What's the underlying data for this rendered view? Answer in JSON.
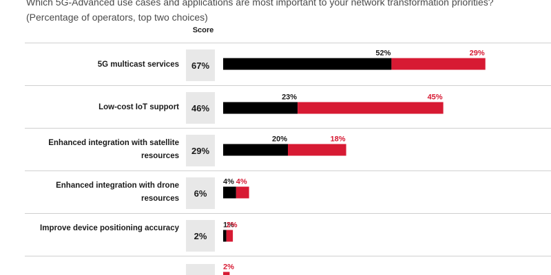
{
  "subtitle": "Which 5G-Advanced use cases and applications are most important to your network transformation priorities? (Percentage of operators, top two choices)",
  "score_header": "Score",
  "colors": {
    "first_choice": "#000000",
    "second_choice": "#d71a33",
    "score_box": "#e8e8e8"
  },
  "chart_data": {
    "type": "bar",
    "orientation": "horizontal",
    "stacked": true,
    "categories": [
      "5G multicast services",
      "Low-cost IoT support",
      "Enhanced integration with satellite resources",
      "Enhanced integration with drone resources",
      "Improve device positioning accuracy",
      ""
    ],
    "scores": [
      "67%",
      "46%",
      "29%",
      "6%",
      "2%",
      ""
    ],
    "series": [
      {
        "values": [
          52,
          23,
          20,
          4,
          1,
          null
        ],
        "labels": [
          "52%",
          "23%",
          "20%",
          "4%",
          "1%",
          ""
        ],
        "color": "#000000"
      },
      {
        "values": [
          29,
          45,
          18,
          4,
          2,
          2
        ],
        "labels": [
          "29%",
          "45%",
          "18%",
          "4%",
          "2%",
          "2%"
        ],
        "color": "#d71a33"
      }
    ],
    "unit": "%"
  }
}
